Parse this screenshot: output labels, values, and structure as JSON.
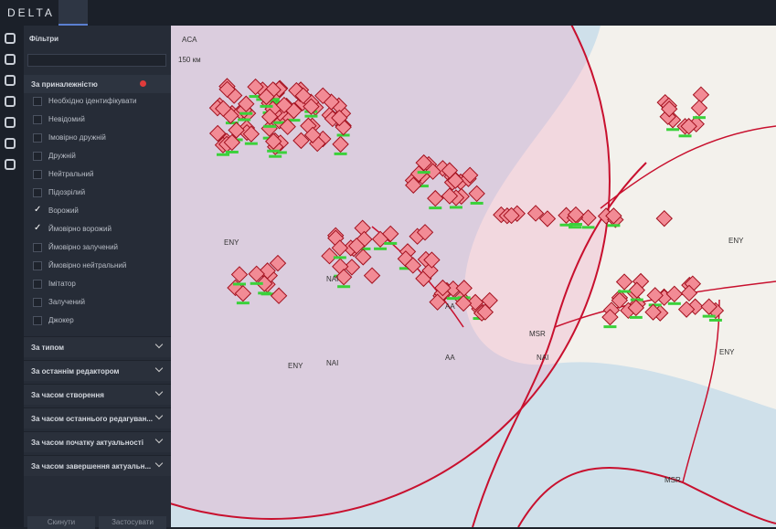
{
  "app": {
    "logo": "DELTA"
  },
  "filters": {
    "title": "Фільтри",
    "group": {
      "title": "За приналежністю",
      "items": [
        {
          "label": "Необхідно ідентифікувати",
          "checked": false
        },
        {
          "label": "Невідомий",
          "checked": false
        },
        {
          "label": "Імовірно дружній",
          "checked": false
        },
        {
          "label": "Дружній",
          "checked": false
        },
        {
          "label": "Нейтральний",
          "checked": false
        },
        {
          "label": "Підозрілий",
          "checked": false
        },
        {
          "label": "Ворожий",
          "checked": true
        },
        {
          "label": "Ймовірно ворожий",
          "checked": true
        },
        {
          "label": "Ймовірно залучений",
          "checked": false
        },
        {
          "label": "Ймовірно нейтральний",
          "checked": false
        },
        {
          "label": "Імітатор",
          "checked": false
        },
        {
          "label": "Залучений",
          "checked": false
        },
        {
          "label": "Джокер",
          "checked": false
        }
      ]
    },
    "sections": [
      "За типом",
      "За останнім редактором",
      "За часом створення",
      "За часом останнього редагуван...",
      "За часом початку актуальності",
      "За часом завершення актуальн..."
    ],
    "buttons": [
      "Скинути",
      "Застосувати"
    ]
  },
  "map": {
    "scale": "150 км",
    "labels": [
      "ACA",
      "ENY",
      "NAI",
      "AA",
      "MSR",
      "ENY",
      "NAI",
      "AA",
      "ENY",
      "MSR",
      "NAI",
      "ENY"
    ]
  }
}
